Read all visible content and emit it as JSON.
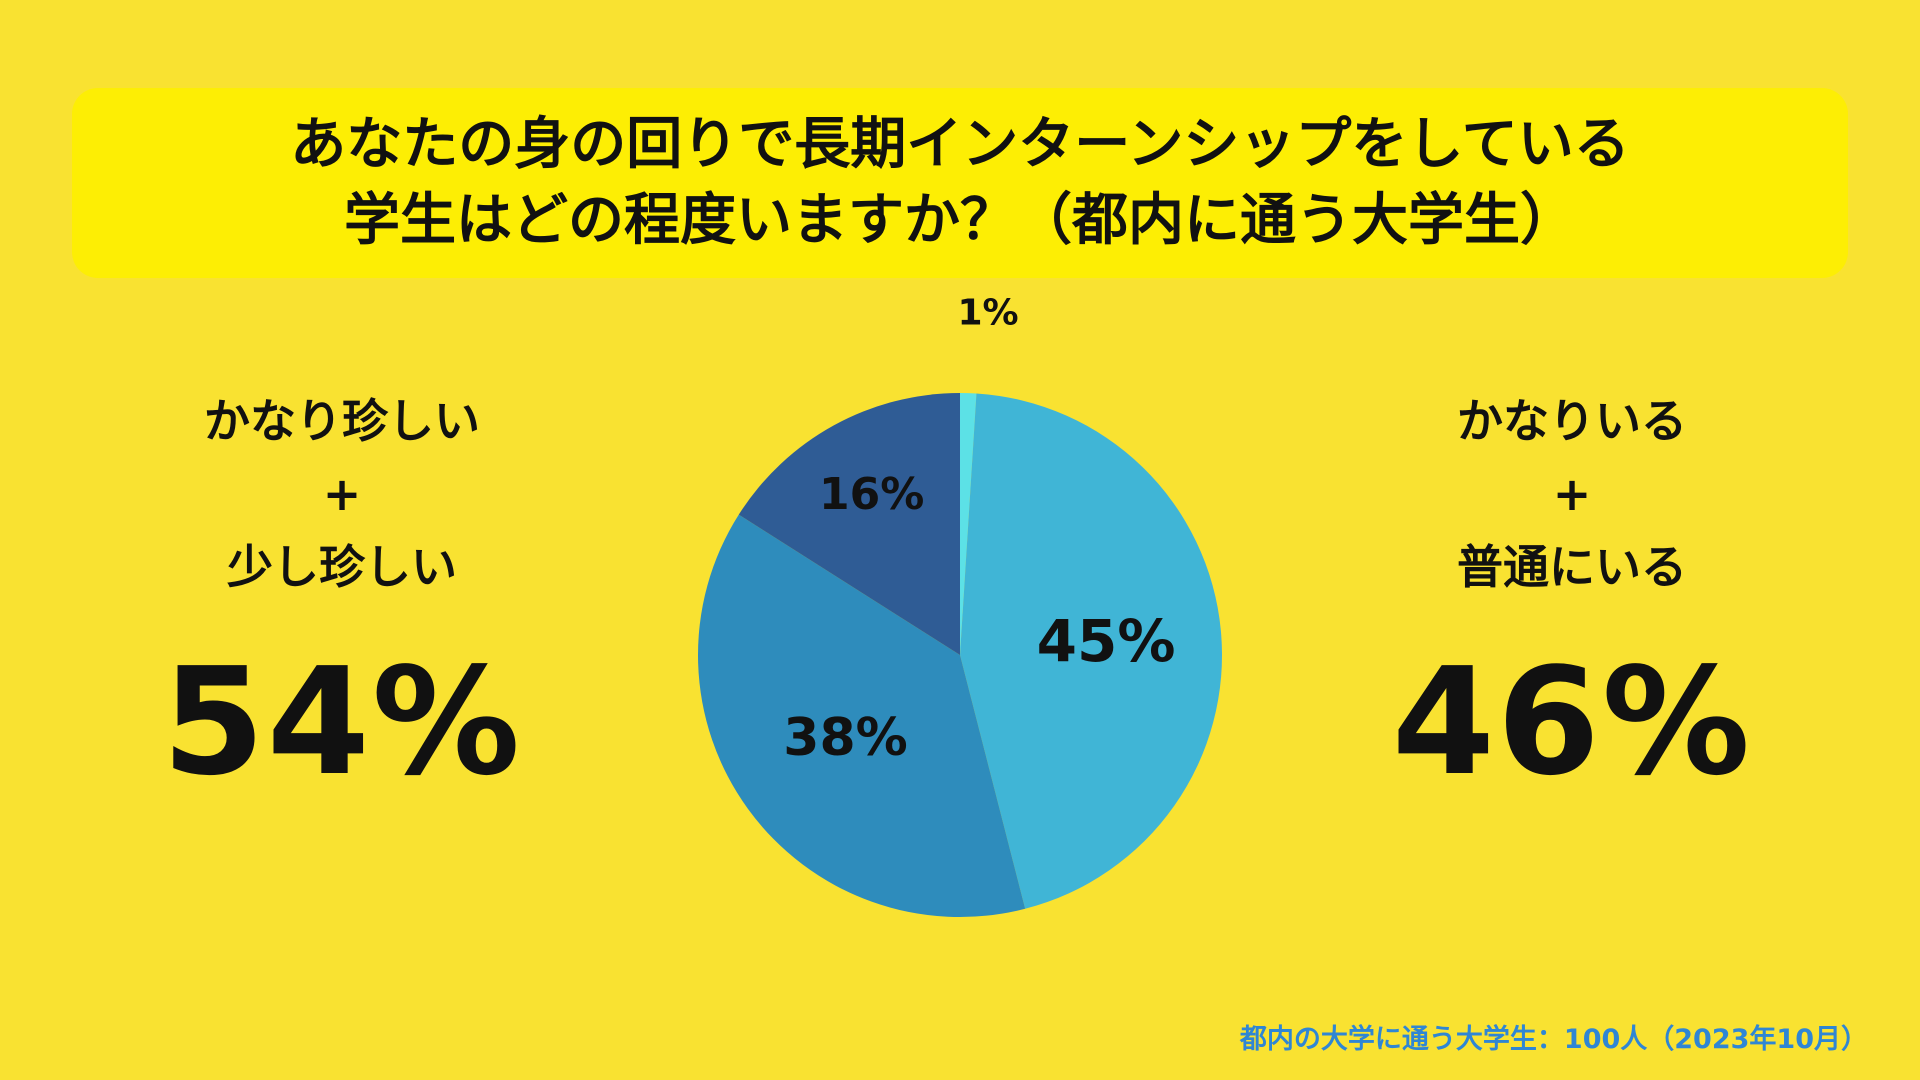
{
  "title": {
    "line1": "あなたの身の回りで長期インターンシップをしている",
    "line2": "学生はどの程度いますか？（都内に通う大学生）"
  },
  "left_summary": {
    "line1": "かなり珍しい",
    "plus": "+",
    "line2": "少し珍しい",
    "percent": "54%"
  },
  "right_summary": {
    "line1": "かなりいる",
    "plus": "+",
    "line2": "普通にいる",
    "percent": "46%"
  },
  "footnote": "都内の大学に通う大学生：100人（2023年10月）",
  "chart_data": {
    "type": "pie",
    "values": [
      1,
      45,
      38,
      16
    ],
    "labels": [
      "1%",
      "45%",
      "38%",
      "16%"
    ],
    "colors": [
      "#5ce1e6",
      "#40b5d6",
      "#2e8cbc",
      "#2f5c95"
    ]
  }
}
